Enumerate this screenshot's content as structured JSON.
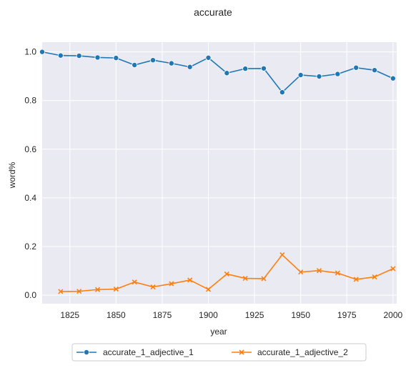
{
  "chart_data": {
    "type": "line",
    "title": "accurate",
    "xlabel": "year",
    "ylabel": "word%",
    "xlim": [
      1810,
      2002
    ],
    "ylim": [
      -0.035,
      1.04
    ],
    "x_ticks": [
      1825,
      1850,
      1875,
      1900,
      1925,
      1950,
      1975,
      2000
    ],
    "y_ticks": [
      0.0,
      0.2,
      0.4,
      0.6,
      0.8,
      1.0
    ],
    "grid": true,
    "background": "#eaeaf2",
    "legend_position": "bottom-center",
    "series": [
      {
        "name": "accurate_1_adjective_1",
        "color": "#1f77b4",
        "marker": "circle",
        "x": [
          1810,
          1820,
          1830,
          1840,
          1850,
          1860,
          1870,
          1880,
          1890,
          1900,
          1910,
          1920,
          1930,
          1940,
          1950,
          1960,
          1970,
          1980,
          1990,
          2000
        ],
        "values": [
          1.0,
          0.985,
          0.984,
          0.977,
          0.975,
          0.946,
          0.966,
          0.953,
          0.938,
          0.976,
          0.913,
          0.931,
          0.932,
          0.834,
          0.905,
          0.899,
          0.909,
          0.935,
          0.925,
          0.891
        ]
      },
      {
        "name": "accurate_1_adjective_2",
        "color": "#ff7f0e",
        "marker": "x",
        "x": [
          1820,
          1830,
          1840,
          1850,
          1860,
          1870,
          1880,
          1890,
          1900,
          1910,
          1920,
          1930,
          1940,
          1950,
          1960,
          1970,
          1980,
          1990,
          2000
        ],
        "values": [
          0.015,
          0.016,
          0.023,
          0.025,
          0.054,
          0.034,
          0.047,
          0.062,
          0.024,
          0.087,
          0.069,
          0.068,
          0.166,
          0.095,
          0.101,
          0.091,
          0.065,
          0.075,
          0.109
        ]
      }
    ]
  }
}
